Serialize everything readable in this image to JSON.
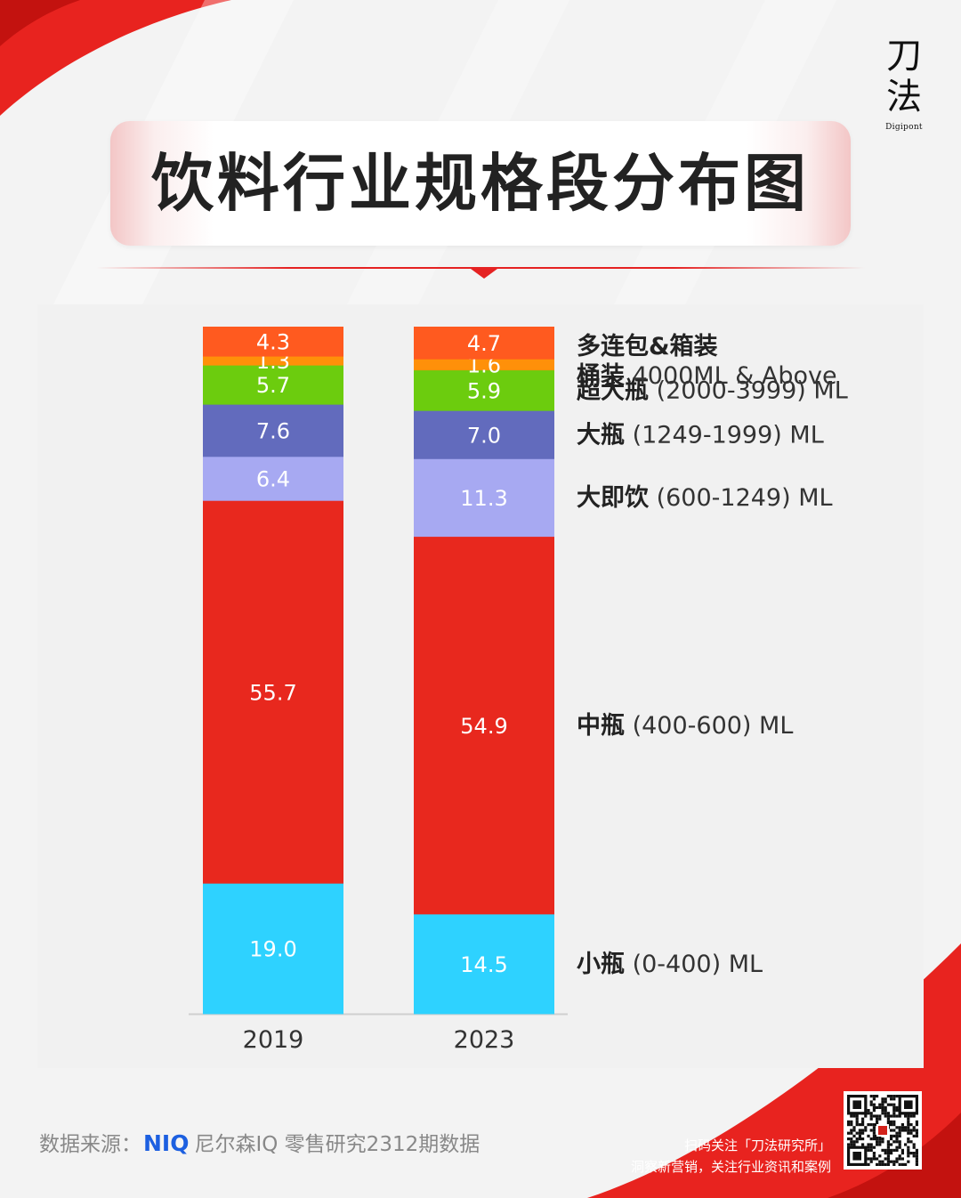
{
  "logo": {
    "char1": "刀",
    "char2": "法",
    "sub": "Digipont"
  },
  "title": "饮料行业规格段分布图",
  "chart_data": {
    "type": "bar",
    "stacked": true,
    "categories": [
      "2019",
      "2023"
    ],
    "ylim": [
      0,
      100
    ],
    "series": [
      {
        "name": "小瓶",
        "label_bold": "小瓶",
        "label_rest": "(0-400) ML",
        "values": [
          19.0,
          14.5
        ],
        "labels": [
          "19.0",
          "14.5"
        ],
        "color": "#2ed2ff"
      },
      {
        "name": "中瓶",
        "label_bold": "中瓶",
        "label_rest": "(400-600) ML",
        "values": [
          55.7,
          54.9
        ],
        "labels": [
          "55.7",
          "54.9"
        ],
        "color": "#e8281e"
      },
      {
        "name": "大即饮",
        "label_bold": "大即饮",
        "label_rest": "(600-1249) ML",
        "values": [
          6.4,
          11.3
        ],
        "labels": [
          "6.4",
          "11.3"
        ],
        "color": "#a7a9f2"
      },
      {
        "name": "大瓶",
        "label_bold": "大瓶",
        "label_rest": "(1249-1999) ML",
        "values": [
          7.6,
          7.0
        ],
        "labels": [
          "7.6",
          "7.0"
        ],
        "color": "#626bbd"
      },
      {
        "name": "超大瓶",
        "label_bold": "超大瓶",
        "label_rest": "(2000-3999) ML",
        "values": [
          5.7,
          5.9
        ],
        "labels": [
          "5.7",
          "5.9"
        ],
        "color": "#6ccc0e"
      },
      {
        "name": "桶装",
        "label_bold": "桶装",
        "label_rest": "4000ML & Above",
        "values": [
          1.3,
          1.6
        ],
        "labels": [
          "1.3",
          "1.6"
        ],
        "color": "#ff9009"
      },
      {
        "name": "多连包&箱装",
        "label_bold": "多连包&箱装",
        "label_rest": "",
        "values": [
          4.3,
          4.7
        ],
        "labels": [
          "4.3",
          "4.7"
        ],
        "color": "#ff5a1f"
      }
    ]
  },
  "footer": {
    "source_prefix": "数据来源：",
    "source_brand": "NIQ",
    "source_text": "尼尔森IQ 零售研究2312期数据",
    "qr_line1": "扫码关注「刀法研究所」",
    "qr_line2": "洞察新营销，关注行业资讯和案例"
  },
  "colors": {
    "accent_red": "#e52222",
    "panel": "#f1f1f1"
  }
}
